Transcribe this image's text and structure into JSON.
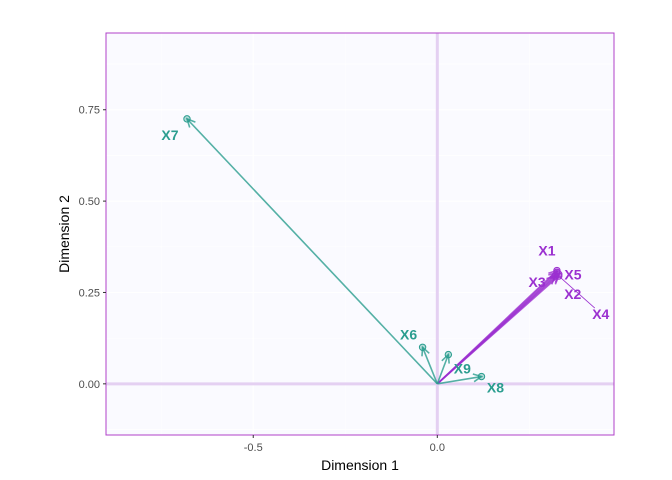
{
  "chart_data": {
    "type": "scatter",
    "subtype": "biplot-vectors",
    "xlabel": "Dimension 1",
    "ylabel": "Dimension 2",
    "xlim": [
      -0.9,
      0.48
    ],
    "ylim": [
      -0.14,
      0.96
    ],
    "x_ticks": [
      -0.5,
      0.0
    ],
    "x_tick_labels": [
      "-0.5",
      "0.0"
    ],
    "y_ticks": [
      0.0,
      0.25,
      0.5,
      0.75
    ],
    "y_tick_labels": [
      "0.00",
      "0.25",
      "0.50",
      "0.75"
    ],
    "grid": true,
    "colors": {
      "panel_background": "#fafaff",
      "panel_border": "#b040c8",
      "zero_lines": "#e4d0f2",
      "gridlines": "#ffffff",
      "teal": "#2a9d8f",
      "purple": "#9b30d0"
    },
    "points": [
      {
        "label": "X1",
        "x": 0.325,
        "y": 0.31,
        "color": "purple"
      },
      {
        "label": "X2",
        "x": 0.33,
        "y": 0.3,
        "color": "purple"
      },
      {
        "label": "X3",
        "x": 0.32,
        "y": 0.295,
        "color": "purple"
      },
      {
        "label": "X4",
        "x": 0.33,
        "y": 0.295,
        "color": "purple"
      },
      {
        "label": "X5",
        "x": 0.325,
        "y": 0.305,
        "color": "purple"
      },
      {
        "label": "X6",
        "x": -0.04,
        "y": 0.1,
        "color": "teal"
      },
      {
        "label": "X7",
        "x": -0.68,
        "y": 0.725,
        "color": "teal"
      },
      {
        "label": "X8",
        "x": 0.12,
        "y": 0.02,
        "color": "teal"
      },
      {
        "label": "X9",
        "x": 0.03,
        "y": 0.08,
        "color": "teal"
      }
    ]
  }
}
